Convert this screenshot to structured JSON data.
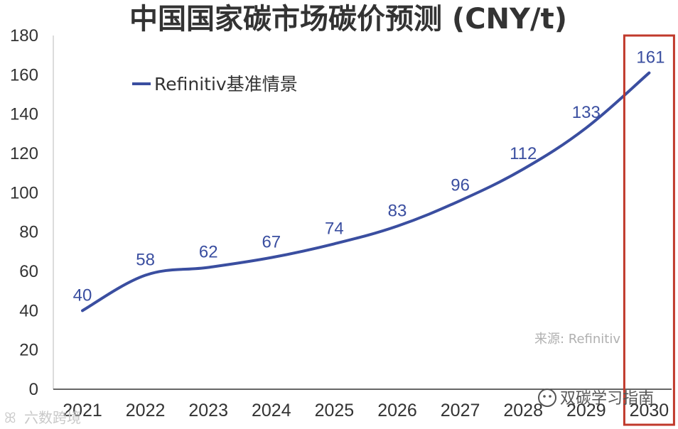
{
  "chart_data": {
    "type": "line",
    "title": "中国国家碳市场碳价预测 (CNY/t)",
    "x": [
      "2021",
      "2022",
      "2023",
      "2024",
      "2025",
      "2026",
      "2027",
      "2028",
      "2029",
      "2030"
    ],
    "series": [
      {
        "name": "Refinitiv基准情景",
        "values": [
          40,
          58,
          62,
          67,
          74,
          83,
          96,
          112,
          133,
          161
        ]
      }
    ],
    "ylim": [
      0,
      180
    ],
    "yticks": [
      0,
      20,
      40,
      60,
      80,
      100,
      120,
      140,
      160,
      180
    ],
    "grid": false,
    "legend": "top-left",
    "highlight_category": "2030",
    "source": "来源: Refinitiv",
    "line_color": "#3a4ea0",
    "highlight_color": "#c0392b"
  },
  "watermarks": {
    "wechat": "双碳学习指南",
    "corner": "六数跨境"
  }
}
